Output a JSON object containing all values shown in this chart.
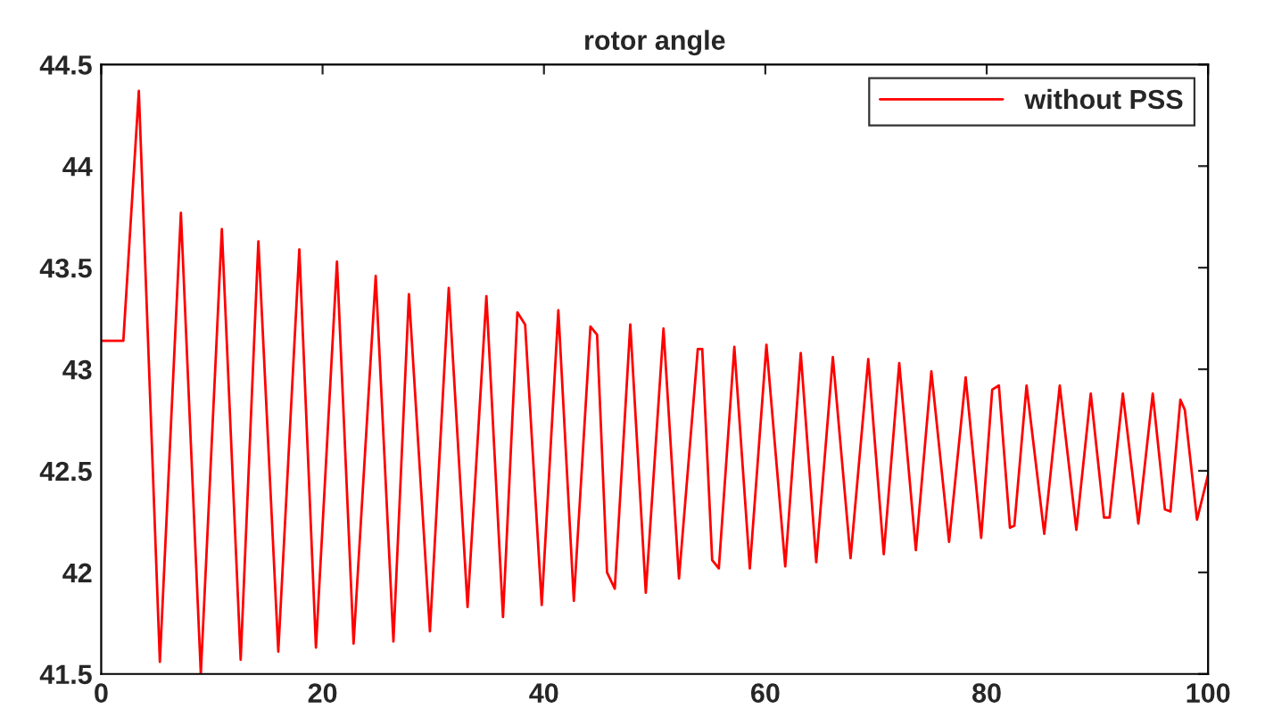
{
  "chart_data": {
    "type": "line",
    "title": "rotor angle",
    "xlim": [
      0,
      100
    ],
    "xticks": [
      0,
      20,
      40,
      60,
      80,
      100
    ],
    "ylim": [
      41.5,
      44.5
    ],
    "yticks": [
      41.5,
      42,
      42.5,
      43,
      43.5,
      44,
      44.5
    ],
    "grid": false,
    "legend": "top right",
    "marker": "none",
    "line_style": "solid",
    "series": [
      {
        "name": "without PSS",
        "color": "#ff0000",
        "x": [
          0,
          2,
          3.4,
          5.3,
          7.2,
          9.0,
          10.9,
          12.6,
          14.2,
          16.0,
          17.9,
          19.4,
          21.3,
          22.8,
          24.8,
          26.4,
          27.8,
          29.7,
          31.4,
          33.1,
          34.8,
          36.3,
          37.6,
          38.3,
          39.8,
          41.3,
          42.7,
          44.2,
          44.8,
          45.7,
          46.4,
          47.8,
          49.2,
          50.8,
          52.2,
          53.9,
          54.3,
          55.2,
          55.8,
          57.2,
          58.6,
          60.1,
          61.8,
          63.2,
          64.6,
          66.1,
          67.7,
          69.3,
          70.7,
          72.1,
          73.6,
          75.0,
          76.6,
          78.1,
          79.5,
          80.5,
          81.1,
          82.1,
          82.5,
          83.6,
          85.2,
          86.6,
          88.1,
          89.4,
          90.6,
          91.1,
          92.3,
          93.7,
          95.0,
          96.1,
          96.6,
          97.5,
          97.9,
          99.0,
          100
        ],
        "values": [
          43.14,
          43.14,
          44.37,
          41.56,
          43.77,
          41.5,
          43.69,
          41.57,
          43.63,
          41.61,
          43.59,
          41.63,
          43.53,
          41.65,
          43.46,
          41.66,
          43.37,
          41.71,
          43.4,
          41.83,
          43.36,
          41.78,
          43.28,
          43.22,
          41.84,
          43.29,
          41.86,
          43.21,
          43.17,
          42.0,
          41.92,
          43.22,
          41.9,
          43.2,
          41.97,
          43.1,
          43.1,
          42.06,
          42.02,
          43.11,
          42.02,
          43.12,
          42.03,
          43.08,
          42.05,
          43.06,
          42.07,
          43.05,
          42.09,
          43.03,
          42.11,
          42.99,
          42.15,
          42.96,
          42.17,
          42.9,
          42.92,
          42.22,
          42.23,
          42.92,
          42.19,
          42.92,
          42.21,
          42.88,
          42.27,
          42.27,
          42.88,
          42.24,
          42.88,
          42.31,
          42.3,
          42.85,
          42.8,
          42.26,
          42.48
        ]
      }
    ]
  }
}
